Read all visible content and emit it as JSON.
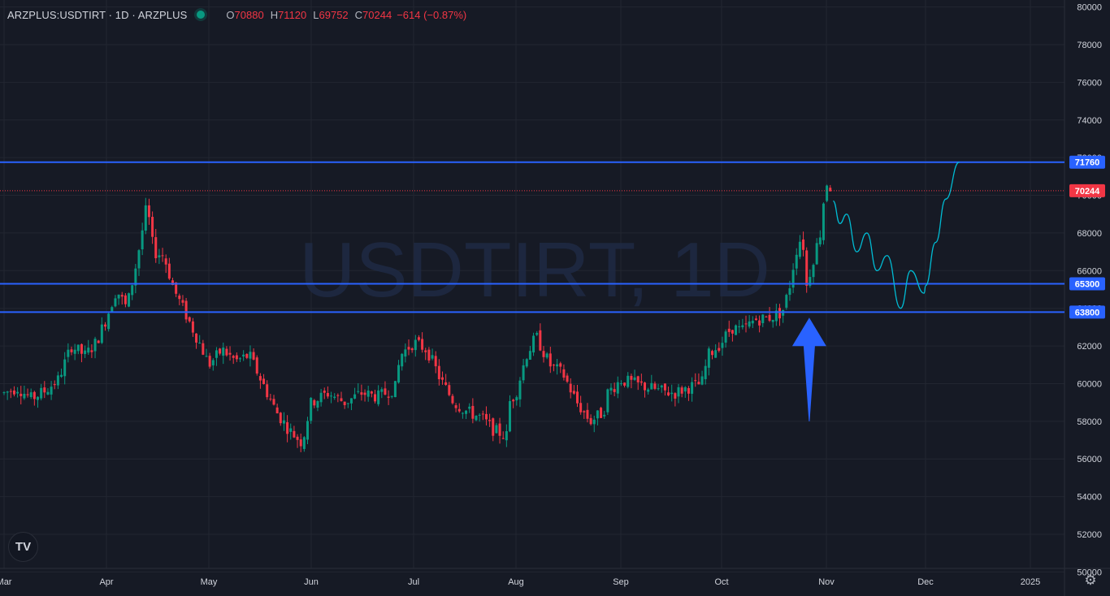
{
  "header": {
    "symbol": "ARZPLUS:USDTIRT · 1D · ARZPLUS",
    "open_label": "O",
    "open": "70880",
    "high_label": "H",
    "high": "71120",
    "low_label": "L",
    "low": "69752",
    "close_label": "C",
    "close": "70244",
    "change": "−614 (−0.87%)"
  },
  "watermark": "USDTIRT, 1D",
  "logo_text": "TV",
  "icons": {
    "logo": "tradingview-logo-icon",
    "settings": "gear-icon",
    "status": "market-status-dot"
  },
  "colors": {
    "background": "#161a25",
    "up": "#089981",
    "down": "#f23645",
    "level_line": "#2962ff",
    "projection": "#00bcd4",
    "arrow": "#2962ff"
  },
  "chart_data": {
    "type": "candlestick",
    "symbol": "ARZPLUS:USDTIRT",
    "interval": "1D",
    "ylim": [
      49500,
      80500
    ],
    "y_ticks": [
      50000,
      52000,
      54000,
      56000,
      58000,
      60000,
      62000,
      64000,
      66000,
      68000,
      70000,
      72000,
      74000,
      76000,
      78000,
      80000
    ],
    "x_ticks": [
      "Mar",
      "Apr",
      "May",
      "Jun",
      "Jul",
      "Aug",
      "Sep",
      "Oct",
      "Nov",
      "Dec",
      "2025"
    ],
    "grid": true,
    "price_path": [
      [
        "Mar",
        59500
      ],
      [
        "Mar+4",
        59800
      ],
      [
        "Mar+8",
        59200
      ],
      [
        "Mar+12",
        59600
      ],
      [
        "Mar+16",
        60200
      ],
      [
        "Mar+20",
        62000
      ],
      [
        "Mar+24",
        61500
      ],
      [
        "Apr-3",
        62200
      ],
      [
        "Apr",
        63500
      ],
      [
        "Apr+3",
        65000
      ],
      [
        "Apr+6",
        64000
      ],
      [
        "Apr+9",
        66500
      ],
      [
        "Apr+12",
        69500
      ],
      [
        "Apr+14",
        67000
      ],
      [
        "Apr+17",
        66800
      ],
      [
        "Apr+20",
        65000
      ],
      [
        "Apr+24",
        63500
      ],
      [
        "Apr+28",
        62000
      ],
      [
        "May",
        61000
      ],
      [
        "May+4",
        61800
      ],
      [
        "May+8",
        61200
      ],
      [
        "May+12",
        61500
      ],
      [
        "May+16",
        60000
      ],
      [
        "May+20",
        58500
      ],
      [
        "May+24",
        57500
      ],
      [
        "May+28",
        56800
      ],
      [
        "Jun-2",
        57500
      ],
      [
        "Jun",
        59000
      ],
      [
        "Jun+5",
        59500
      ],
      [
        "Jun+10",
        59000
      ],
      [
        "Jun+15",
        59500
      ],
      [
        "Jun+20",
        59300
      ],
      [
        "Jun+25",
        59800
      ],
      [
        "Jul-4",
        61500
      ],
      [
        "Jul",
        62200
      ],
      [
        "Jul+4",
        61800
      ],
      [
        "Jul+8",
        60200
      ],
      [
        "Jul+12",
        59000
      ],
      [
        "Jul+16",
        58500
      ],
      [
        "Jul+20",
        58200
      ],
      [
        "Jul+24",
        57500
      ],
      [
        "Jul+28",
        57200
      ],
      [
        "Aug-4",
        58500
      ],
      [
        "Aug",
        59500
      ],
      [
        "Aug+3",
        61500
      ],
      [
        "Aug+6",
        62500
      ],
      [
        "Aug+10",
        61000
      ],
      [
        "Aug+14",
        60500
      ],
      [
        "Aug+18",
        59000
      ],
      [
        "Aug+22",
        58000
      ],
      [
        "Aug+26",
        58500
      ],
      [
        "Sep-4",
        59500
      ],
      [
        "Sep",
        60200
      ],
      [
        "Sep+4",
        60000
      ],
      [
        "Sep+8",
        59800
      ],
      [
        "Sep+12",
        59600
      ],
      [
        "Sep+16",
        59500
      ],
      [
        "Sep+20",
        59800
      ],
      [
        "Sep+24",
        60000
      ],
      [
        "Oct-4",
        61500
      ],
      [
        "Oct",
        62200
      ],
      [
        "Oct+3",
        63000
      ],
      [
        "Oct+6",
        62800
      ],
      [
        "Oct+10",
        63400
      ],
      [
        "Oct+14",
        63500
      ],
      [
        "Oct+18",
        63800
      ],
      [
        "Oct+20",
        65000
      ],
      [
        "Oct+22",
        67000
      ],
      [
        "Oct+24",
        68000
      ],
      [
        "Oct+25",
        65000
      ],
      [
        "Oct+27",
        66500
      ],
      [
        "Oct+30",
        68500
      ],
      [
        "Nov-1",
        69500
      ],
      [
        "Nov",
        70700
      ],
      [
        "Nov+2",
        70244
      ]
    ],
    "projection_path": [
      [
        "Nov+2",
        69700
      ],
      [
        "Nov+4",
        68500
      ],
      [
        "Nov+6",
        69000
      ],
      [
        "Nov+9",
        67000
      ],
      [
        "Nov+12",
        68000
      ],
      [
        "Nov+15",
        66000
      ],
      [
        "Nov+18",
        66800
      ],
      [
        "Nov+22",
        64000
      ],
      [
        "Nov+25",
        66000
      ],
      [
        "Nov+29",
        64800
      ],
      [
        "Dec",
        65200
      ],
      [
        "Dec+3",
        67500
      ],
      [
        "Dec+6",
        69800
      ],
      [
        "Dec+10",
        71760
      ]
    ],
    "horizontal_levels": [
      {
        "value": 71760,
        "label": "71760"
      },
      {
        "value": 65300,
        "label": "65300"
      },
      {
        "value": 63800,
        "label": "63800"
      }
    ],
    "last_price": {
      "value": 70244,
      "label": "70244"
    },
    "annotation": {
      "type": "up-arrow",
      "at": "Oct+26",
      "from": 58000,
      "to": 63500
    }
  }
}
